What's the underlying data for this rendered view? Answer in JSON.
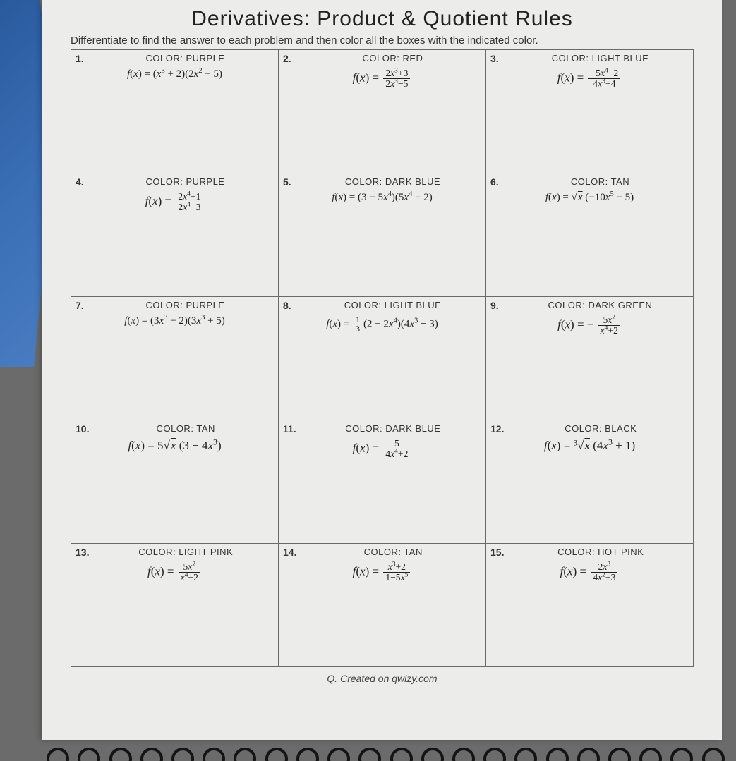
{
  "title": "Derivatives: Product & Quotient Rules",
  "subtitle": "Differentiate to find the answer to each problem and then color all the boxes with the indicated color.",
  "footer": "Q. Created on qwizy.com",
  "colors": {
    "page_bg": "#ececea",
    "border": "#6a6a6a",
    "text": "#222222",
    "edge_blue": "#3a6fb5"
  },
  "cells": [
    {
      "num": "1.",
      "color": "COLOR: PURPLE"
    },
    {
      "num": "2.",
      "color": "COLOR: RED"
    },
    {
      "num": "3.",
      "color": "COLOR: LIGHT BLUE"
    },
    {
      "num": "4.",
      "color": "COLOR: PURPLE"
    },
    {
      "num": "5.",
      "color": "COLOR: DARK BLUE"
    },
    {
      "num": "6.",
      "color": "COLOR: TAN"
    },
    {
      "num": "7.",
      "color": "COLOR: PURPLE"
    },
    {
      "num": "8.",
      "color": "COLOR: LIGHT BLUE"
    },
    {
      "num": "9.",
      "color": "COLOR: DARK GREEN"
    },
    {
      "num": "10.",
      "color": "COLOR: TAN"
    },
    {
      "num": "11.",
      "color": "COLOR: DARK BLUE"
    },
    {
      "num": "12.",
      "color": "COLOR: BLACK"
    },
    {
      "num": "13.",
      "color": "COLOR: LIGHT PINK"
    },
    {
      "num": "14.",
      "color": "COLOR: TAN"
    },
    {
      "num": "15.",
      "color": "COLOR: HOT PINK"
    }
  ],
  "formulas_plain": [
    "f(x) = (x^3 + 2)(2x^2 - 5)",
    "f(x) = (2x^3 + 3)/(2x^3 - 5)",
    "f(x) = (-5x^4 - 2)/(4x^3 + 4)",
    "f(x) = (2x^4 + 1)/(2x^4 - 3)",
    "f(x) = (3 - 5x^4)(5x^4 + 2)",
    "f(x) = sqrt(x)(-10x^5 - 5)",
    "f(x) = (3x^3 - 2)(3x^3 + 5)",
    "f(x) = (1/3)(2 + 2x^4)(4x^3 - 3)",
    "f(x) = -(5x^2)/(x^4 + 2)",
    "f(x) = 5 sqrt(x)(3 - 4x^3)",
    "f(x) = 5/(4x^4 + 2)",
    "f(x) = cbrt(x)(4x^3 + 1)",
    "f(x) = (5x^2)/(x^4 + 2)",
    "f(x) = (x^3 + 2)/(1 - 5x^5)",
    "f(x) = (2x^3)/(4x^2 + 3)"
  ]
}
